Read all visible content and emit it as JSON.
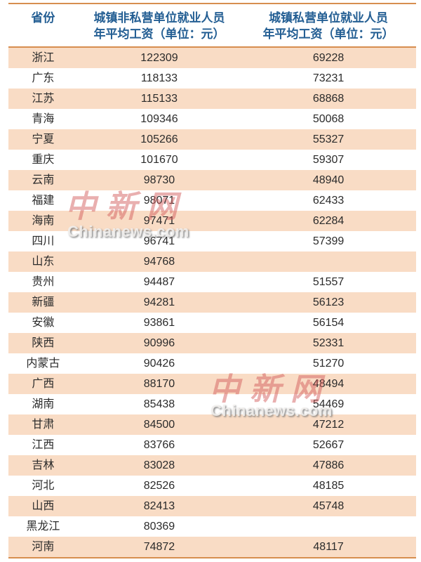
{
  "header": {
    "col1": "省份",
    "col2_line1": "城镇非私营单位就业人员",
    "col2_line2": "年平均工资（单位：元）",
    "col3_line1": "城镇私营单位就业人员",
    "col3_line2": "年平均工资（单位：元）"
  },
  "chart_data": {
    "type": "table",
    "columns": [
      "省份",
      "城镇非私营单位就业人员年平均工资（单位：元）",
      "城镇私营单位就业人员年平均工资（单位：元）"
    ],
    "rows": [
      [
        "浙江",
        "122309",
        "69228"
      ],
      [
        "广东",
        "118133",
        "73231"
      ],
      [
        "江苏",
        "115133",
        "68868"
      ],
      [
        "青海",
        "109346",
        "50068"
      ],
      [
        "宁夏",
        "105266",
        "55327"
      ],
      [
        "重庆",
        "101670",
        "59307"
      ],
      [
        "云南",
        "98730",
        "48940"
      ],
      [
        "福建",
        "98071",
        "62433"
      ],
      [
        "海南",
        "97471",
        "62284"
      ],
      [
        "四川",
        "96741",
        "57399"
      ],
      [
        "山东",
        "94768",
        ""
      ],
      [
        "贵州",
        "94487",
        "51557"
      ],
      [
        "新疆",
        "94281",
        "56123"
      ],
      [
        "安徽",
        "93861",
        "56154"
      ],
      [
        "陕西",
        "90996",
        "52331"
      ],
      [
        "内蒙古",
        "90426",
        "51270"
      ],
      [
        "广西",
        "88170",
        "48494"
      ],
      [
        "湖南",
        "85438",
        "54469"
      ],
      [
        "甘肃",
        "84500",
        "47212"
      ],
      [
        "江西",
        "83766",
        "52667"
      ],
      [
        "吉林",
        "83028",
        "47886"
      ],
      [
        "河北",
        "82526",
        "48185"
      ],
      [
        "山西",
        "82413",
        "45748"
      ],
      [
        "黑龙江",
        "80369",
        ""
      ],
      [
        "河南",
        "74872",
        "48117"
      ]
    ]
  },
  "watermark": {
    "logo": "中新网",
    "site": "Chinanews.com"
  },
  "colors": {
    "accent_border": "#D78E4F",
    "row_stripe": "#F9DCC5",
    "header_text": "#235E93",
    "body_text": "#2B2B2B",
    "watermark_red": "#D05858"
  }
}
